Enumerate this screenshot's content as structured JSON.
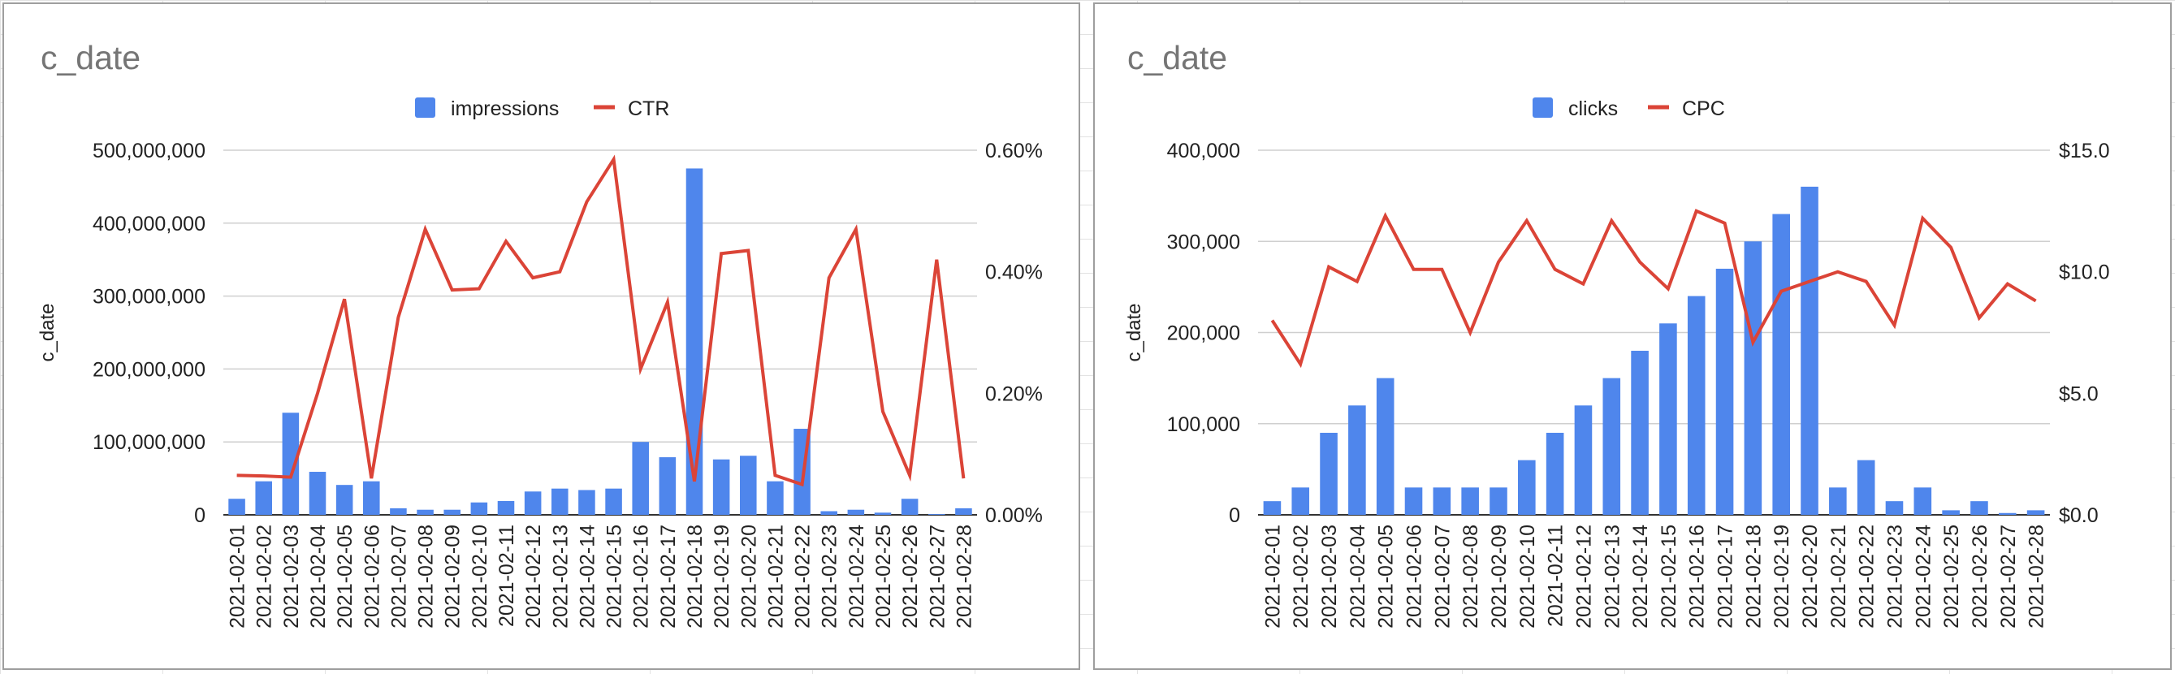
{
  "chart_data": [
    {
      "type": "bar",
      "title": "c_date",
      "ylabel": "c_date",
      "legend_position": "top",
      "categories": [
        "2021-02-01",
        "2021-02-02",
        "2021-02-03",
        "2021-02-04",
        "2021-02-05",
        "2021-02-06",
        "2021-02-07",
        "2021-02-08",
        "2021-02-09",
        "2021-02-10",
        "2021-02-11",
        "2021-02-12",
        "2021-02-13",
        "2021-02-14",
        "2021-02-15",
        "2021-02-16",
        "2021-02-17",
        "2021-02-18",
        "2021-02-19",
        "2021-02-20",
        "2021-02-21",
        "2021-02-22",
        "2021-02-23",
        "2021-02-24",
        "2021-02-25",
        "2021-02-26",
        "2021-02-27",
        "2021-02-28"
      ],
      "series": [
        {
          "name": "impressions",
          "type": "bar",
          "axis": "left",
          "color": "#4f86ec",
          "values": [
            22000000,
            46000000,
            140000000,
            59000000,
            41000000,
            46000000,
            9000000,
            7000000,
            7000000,
            17000000,
            19000000,
            32000000,
            36000000,
            34000000,
            36000000,
            100000000,
            79000000,
            475000000,
            76000000,
            81000000,
            46000000,
            118000000,
            5000000,
            7000000,
            3000000,
            22000000,
            1000000,
            9000000
          ]
        },
        {
          "name": "CTR",
          "type": "line",
          "axis": "right",
          "color": "#db4437",
          "values": [
            0.065,
            0.064,
            0.062,
            0.2,
            0.355,
            0.06,
            0.325,
            0.47,
            0.37,
            0.372,
            0.45,
            0.39,
            0.4,
            0.515,
            0.585,
            0.24,
            0.35,
            0.055,
            0.43,
            0.435,
            0.065,
            0.05,
            0.39,
            0.47,
            0.17,
            0.065,
            0.42,
            0.06
          ]
        }
      ],
      "left_axis": {
        "min": 0,
        "max": 500000000,
        "ticks": [
          "0",
          "100,000,000",
          "200,000,000",
          "300,000,000",
          "400,000,000",
          "500,000,000"
        ]
      },
      "right_axis": {
        "min": 0,
        "max": 0.6,
        "ticks": [
          "0.00%",
          "0.20%",
          "0.40%",
          "0.60%"
        ]
      }
    },
    {
      "type": "bar",
      "title": "c_date",
      "ylabel": "c_date",
      "legend_position": "top",
      "categories": [
        "2021-02-01",
        "2021-02-02",
        "2021-02-03",
        "2021-02-04",
        "2021-02-05",
        "2021-02-06",
        "2021-02-07",
        "2021-02-08",
        "2021-02-09",
        "2021-02-10",
        "2021-02-11",
        "2021-02-12",
        "2021-02-13",
        "2021-02-14",
        "2021-02-15",
        "2021-02-16",
        "2021-02-17",
        "2021-02-18",
        "2021-02-19",
        "2021-02-20",
        "2021-02-21",
        "2021-02-22",
        "2021-02-23",
        "2021-02-24",
        "2021-02-25",
        "2021-02-26",
        "2021-02-27",
        "2021-02-28"
      ],
      "series": [
        {
          "name": "clicks",
          "type": "bar",
          "axis": "left",
          "color": "#4f86ec",
          "values": [
            15000,
            30000,
            90000,
            120000,
            150000,
            30000,
            30000,
            30000,
            30000,
            60000,
            90000,
            120000,
            150000,
            180000,
            210000,
            240000,
            270000,
            300000,
            330000,
            360000,
            30000,
            60000,
            15000,
            30000,
            5000,
            15000,
            2000,
            5000
          ]
        },
        {
          "name": "CPC",
          "type": "line",
          "axis": "right",
          "color": "#db4437",
          "values": [
            8.0,
            6.2,
            10.2,
            9.6,
            12.3,
            10.1,
            10.1,
            7.5,
            10.4,
            12.1,
            10.1,
            9.5,
            12.1,
            10.4,
            9.3,
            12.5,
            12.0,
            7.1,
            9.2,
            9.6,
            10.0,
            9.6,
            7.8,
            12.2,
            11.0,
            8.1,
            9.5,
            8.8
          ]
        }
      ],
      "left_axis": {
        "min": 0,
        "max": 400000,
        "ticks": [
          "0",
          "100,000",
          "200,000",
          "300,000",
          "400,000"
        ]
      },
      "right_axis": {
        "min": 0,
        "max": 15,
        "ticks": [
          "$0.0",
          "$5.0",
          "$10.0",
          "$15.0"
        ]
      }
    }
  ]
}
